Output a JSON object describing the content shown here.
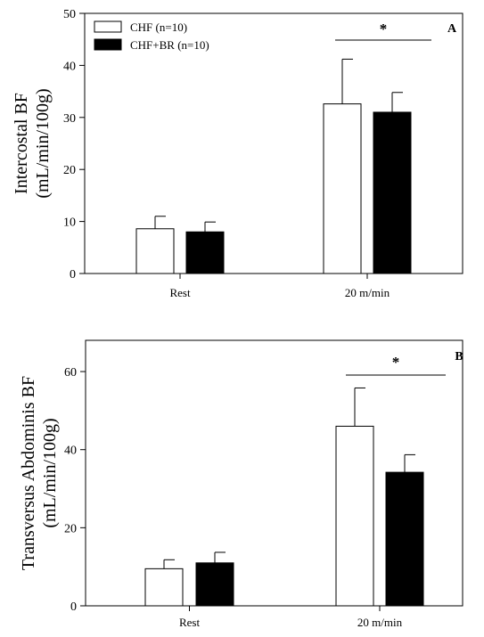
{
  "chart_data": [
    {
      "type": "bar",
      "panel_label": "A",
      "ylabel_line1": "Intercostal BF",
      "ylabel_line2": "(mL/min/100g)",
      "ylim": [
        0,
        50
      ],
      "yticks": [
        0,
        10,
        20,
        30,
        40,
        50
      ],
      "categories": [
        "Rest",
        "20 m/min"
      ],
      "series": [
        {
          "name": "CHF (n=10)",
          "fill": "#ffffff",
          "values": [
            8.6,
            32.6
          ],
          "errors": [
            2.4,
            8.6
          ]
        },
        {
          "name": "CHF+BR (n=10)",
          "fill": "#000000",
          "values": [
            8.0,
            31.0
          ],
          "errors": [
            1.9,
            3.8
          ]
        }
      ],
      "significance": {
        "label": "*",
        "category": "20 m/min"
      },
      "legend_position": "top-left"
    },
    {
      "type": "bar",
      "panel_label": "B",
      "ylabel_line1": "Transversus Abdominis BF",
      "ylabel_line2": "(mL/min/100g)",
      "ylim": [
        0,
        68
      ],
      "yticks": [
        0,
        20,
        40,
        60
      ],
      "categories": [
        "Rest",
        "20 m/min"
      ],
      "series": [
        {
          "fill": "#ffffff",
          "values": [
            9.5,
            46.0
          ],
          "errors": [
            2.3,
            9.8
          ]
        },
        {
          "fill": "#000000",
          "values": [
            11.0,
            34.2
          ],
          "errors": [
            2.7,
            4.5
          ]
        }
      ],
      "significance": {
        "label": "*",
        "category": "20 m/min"
      }
    }
  ]
}
